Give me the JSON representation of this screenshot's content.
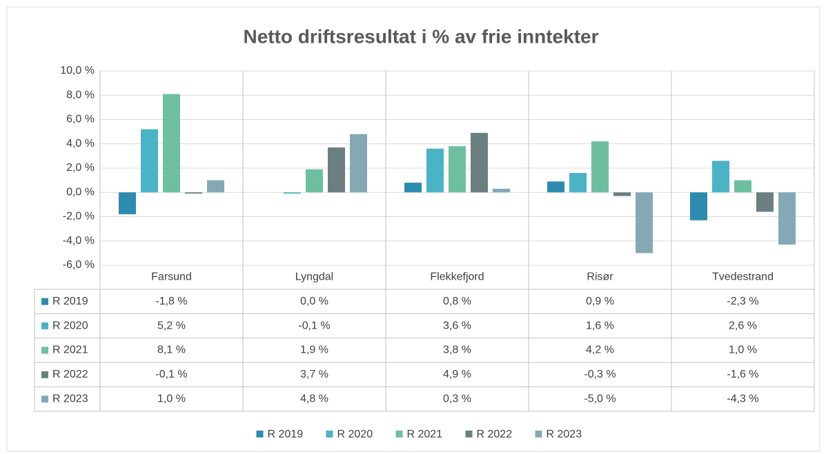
{
  "chart_data": {
    "type": "bar",
    "title": "Netto driftsresultat i % av frie inntekter",
    "categories": [
      "Farsund",
      "Lyngdal",
      "Flekkefjord",
      "Risør",
      "Tvedestrand"
    ],
    "series": [
      {
        "name": "R 2019",
        "color": "#2e8bb0",
        "values": [
          -1.8,
          0.0,
          0.8,
          0.9,
          -2.3
        ],
        "value_labels": [
          "-1,8 %",
          "0,0 %",
          "0,8 %",
          "0,9 %",
          "-2,3 %"
        ]
      },
      {
        "name": "R 2020",
        "color": "#4bb3c6",
        "values": [
          5.2,
          -0.1,
          3.6,
          1.6,
          2.6
        ],
        "value_labels": [
          "5,2 %",
          "-0,1 %",
          "3,6 %",
          "1,6 %",
          "2,6 %"
        ]
      },
      {
        "name": "R 2021",
        "color": "#6dbfa0",
        "values": [
          8.1,
          1.9,
          3.8,
          4.2,
          1.0
        ],
        "value_labels": [
          "8,1 %",
          "1,9 %",
          "3,8 %",
          "4,2 %",
          "1,0 %"
        ]
      },
      {
        "name": "R 2022",
        "color": "#6b7f80",
        "values": [
          -0.1,
          3.7,
          4.9,
          -0.3,
          -1.6
        ],
        "value_labels": [
          "-0,1 %",
          "3,7 %",
          "4,9 %",
          "-0,3 %",
          "-1,6 %"
        ]
      },
      {
        "name": "R 2023",
        "color": "#84a9b5",
        "values": [
          1.0,
          4.8,
          0.3,
          -5.0,
          -4.3
        ],
        "value_labels": [
          "1,0 %",
          "4,8 %",
          "0,3 %",
          "-5,0 %",
          "-4,3 %"
        ]
      }
    ],
    "ylim": [
      -6,
      10
    ],
    "yticks": [
      {
        "value": -6,
        "label": "-6,0 %"
      },
      {
        "value": -4,
        "label": "-4,0 %"
      },
      {
        "value": -2,
        "label": "-2,0 %"
      },
      {
        "value": 0,
        "label": "0,0 %"
      },
      {
        "value": 2,
        "label": "2,0 %"
      },
      {
        "value": 4,
        "label": "4,0 %"
      },
      {
        "value": 6,
        "label": "6,0 %"
      },
      {
        "value": 8,
        "label": "8,0 %"
      },
      {
        "value": 10,
        "label": "10,0 %"
      }
    ],
    "grid": true,
    "legend": "bottom"
  }
}
